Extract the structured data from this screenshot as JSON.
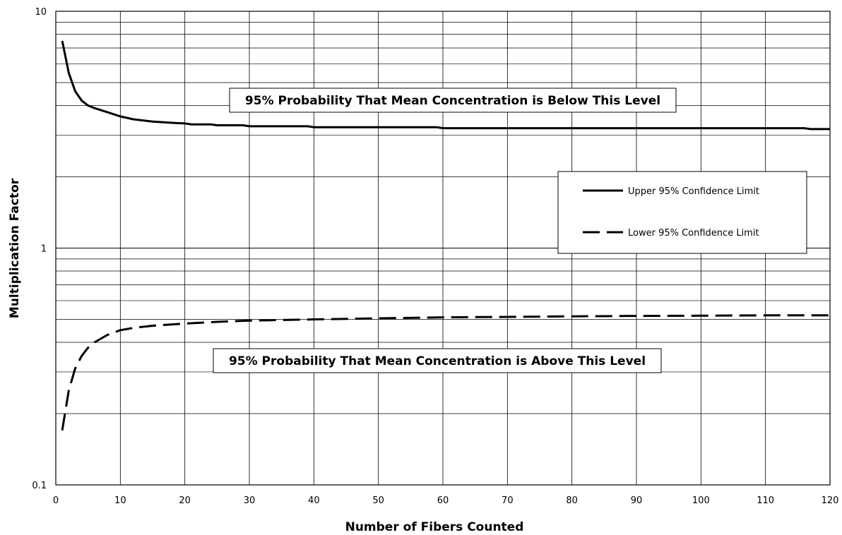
{
  "chart_data": {
    "type": "line",
    "title": "",
    "xlabel": "Number of Fibers Counted",
    "ylabel": "Multiplication Factor",
    "xlim": [
      0,
      120
    ],
    "ylim": [
      0.1,
      10
    ],
    "yscale": "log",
    "grid": true,
    "legend_position": "right",
    "x_ticks": [
      "0",
      "10",
      "20",
      "30",
      "40",
      "50",
      "60",
      "70",
      "80",
      "90",
      "100",
      "110",
      "120"
    ],
    "y_ticks": [
      "0.1",
      "1",
      "10"
    ],
    "series": [
      {
        "name": "Upper 95% Confidence Limit",
        "style": "solid",
        "color": "#000000",
        "x": [
          1,
          2,
          3,
          4,
          5,
          6,
          8,
          10,
          12,
          15,
          18,
          20,
          21,
          24,
          25,
          29,
          30,
          39,
          40,
          59,
          60,
          116,
          117,
          120
        ],
        "y": [
          7.5,
          5.5,
          4.6,
          4.2,
          4.0,
          3.9,
          3.75,
          3.6,
          3.5,
          3.42,
          3.38,
          3.36,
          3.33,
          3.33,
          3.3,
          3.3,
          3.27,
          3.27,
          3.24,
          3.24,
          3.21,
          3.21,
          3.18,
          3.18
        ]
      },
      {
        "name": "Lower 95% Confidence Limit",
        "style": "dashed",
        "color": "#000000",
        "x": [
          1,
          2,
          3,
          4,
          5,
          6,
          8,
          10,
          12,
          15,
          20,
          25,
          30,
          40,
          50,
          60,
          70,
          80,
          90,
          100,
          110,
          120
        ],
        "y": [
          0.17,
          0.25,
          0.31,
          0.35,
          0.38,
          0.4,
          0.43,
          0.45,
          0.46,
          0.47,
          0.48,
          0.488,
          0.494,
          0.5,
          0.505,
          0.51,
          0.512,
          0.515,
          0.517,
          0.518,
          0.52,
          0.52
        ]
      }
    ],
    "annotations": [
      {
        "text": "95% Probability That Mean Concentration is Below This Level"
      },
      {
        "text": "95% Probability That Mean Concentration is Above This Level"
      }
    ]
  },
  "colors": {
    "line": "#000000",
    "grid": "#000000",
    "background": "#ffffff"
  }
}
